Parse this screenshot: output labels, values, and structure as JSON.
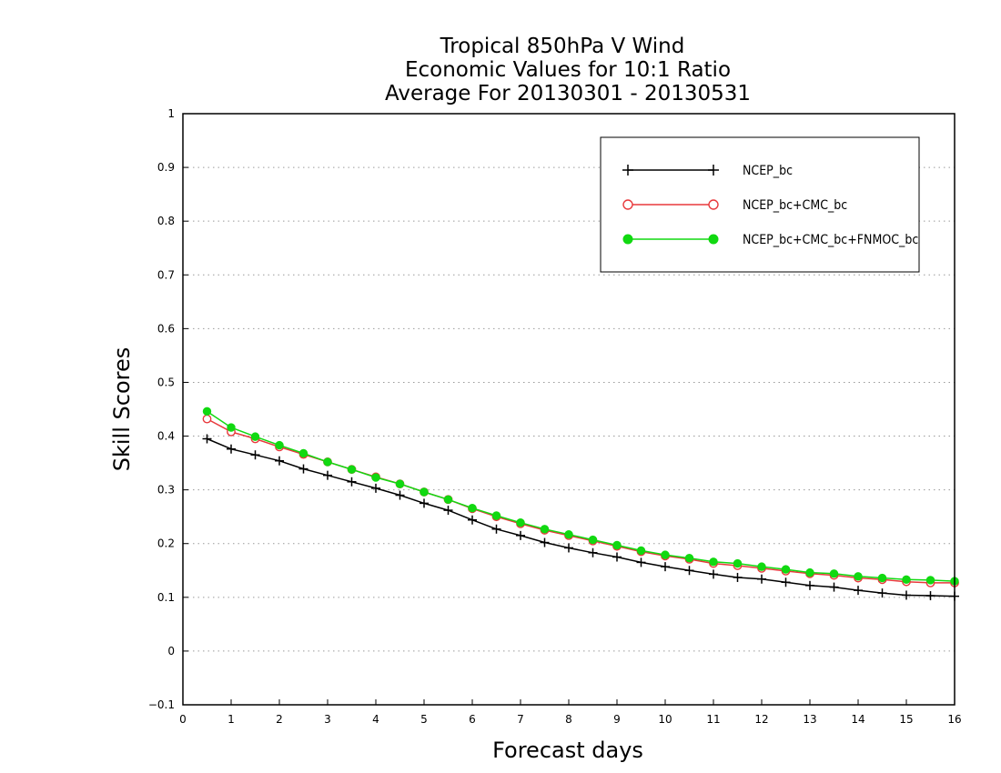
{
  "chart_data": {
    "type": "line",
    "title": [
      "Tropical 850hPa V Wind",
      "Economic Values for 10:1 Ratio",
      "Average For 20130301 - 20130531"
    ],
    "xlabel": "Forecast days",
    "ylabel": "Skill Scores",
    "xlim": [
      0,
      16
    ],
    "ylim": [
      -0.1,
      1
    ],
    "xticks": [
      "0",
      "1",
      "2",
      "3",
      "4",
      "5",
      "6",
      "7",
      "8",
      "9",
      "10",
      "11",
      "12",
      "13",
      "14",
      "15",
      "16"
    ],
    "yticks": [
      "-0.1",
      "0",
      "0.1",
      "0.2",
      "0.3",
      "0.4",
      "0.5",
      "0.6",
      "0.7",
      "0.8",
      "0.9",
      "1"
    ],
    "grid": "horizontal dotted",
    "legend_position": "top-right",
    "x": [
      0.5,
      1,
      1.5,
      2,
      2.5,
      3,
      3.5,
      4,
      4.5,
      5,
      5.5,
      6,
      6.5,
      7,
      7.5,
      8,
      8.5,
      9,
      9.5,
      10,
      10.5,
      11,
      11.5,
      12,
      12.5,
      13,
      13.5,
      14,
      14.5,
      15,
      15.5,
      16
    ],
    "series": [
      {
        "name": "NCEP_bc",
        "color": "#000000",
        "marker": "plus",
        "values": [
          0.395,
          0.376,
          0.365,
          0.354,
          0.339,
          0.327,
          0.315,
          0.303,
          0.29,
          0.275,
          0.262,
          0.244,
          0.227,
          0.215,
          0.202,
          0.192,
          0.183,
          0.175,
          0.165,
          0.157,
          0.15,
          0.143,
          0.137,
          0.134,
          0.128,
          0.122,
          0.119,
          0.113,
          0.108,
          0.104,
          0.103,
          0.102
        ]
      },
      {
        "name": "NCEP_bc+CMC_bc",
        "color": "#e8393c",
        "marker": "open-circle",
        "values": [
          0.432,
          0.408,
          0.395,
          0.38,
          0.366,
          0.352,
          0.338,
          0.324,
          0.311,
          0.296,
          0.282,
          0.265,
          0.25,
          0.237,
          0.225,
          0.215,
          0.205,
          0.195,
          0.185,
          0.177,
          0.171,
          0.163,
          0.159,
          0.154,
          0.149,
          0.144,
          0.141,
          0.136,
          0.133,
          0.129,
          0.127,
          0.127
        ]
      },
      {
        "name": "NCEP_bc+CMC_bc+FNMOC_bc",
        "color": "#11d911",
        "marker": "filled-circle",
        "values": [
          0.446,
          0.416,
          0.399,
          0.383,
          0.368,
          0.352,
          0.338,
          0.323,
          0.311,
          0.296,
          0.282,
          0.266,
          0.252,
          0.239,
          0.227,
          0.217,
          0.207,
          0.197,
          0.187,
          0.179,
          0.173,
          0.166,
          0.163,
          0.157,
          0.152,
          0.146,
          0.144,
          0.139,
          0.136,
          0.133,
          0.132,
          0.13
        ]
      }
    ]
  }
}
